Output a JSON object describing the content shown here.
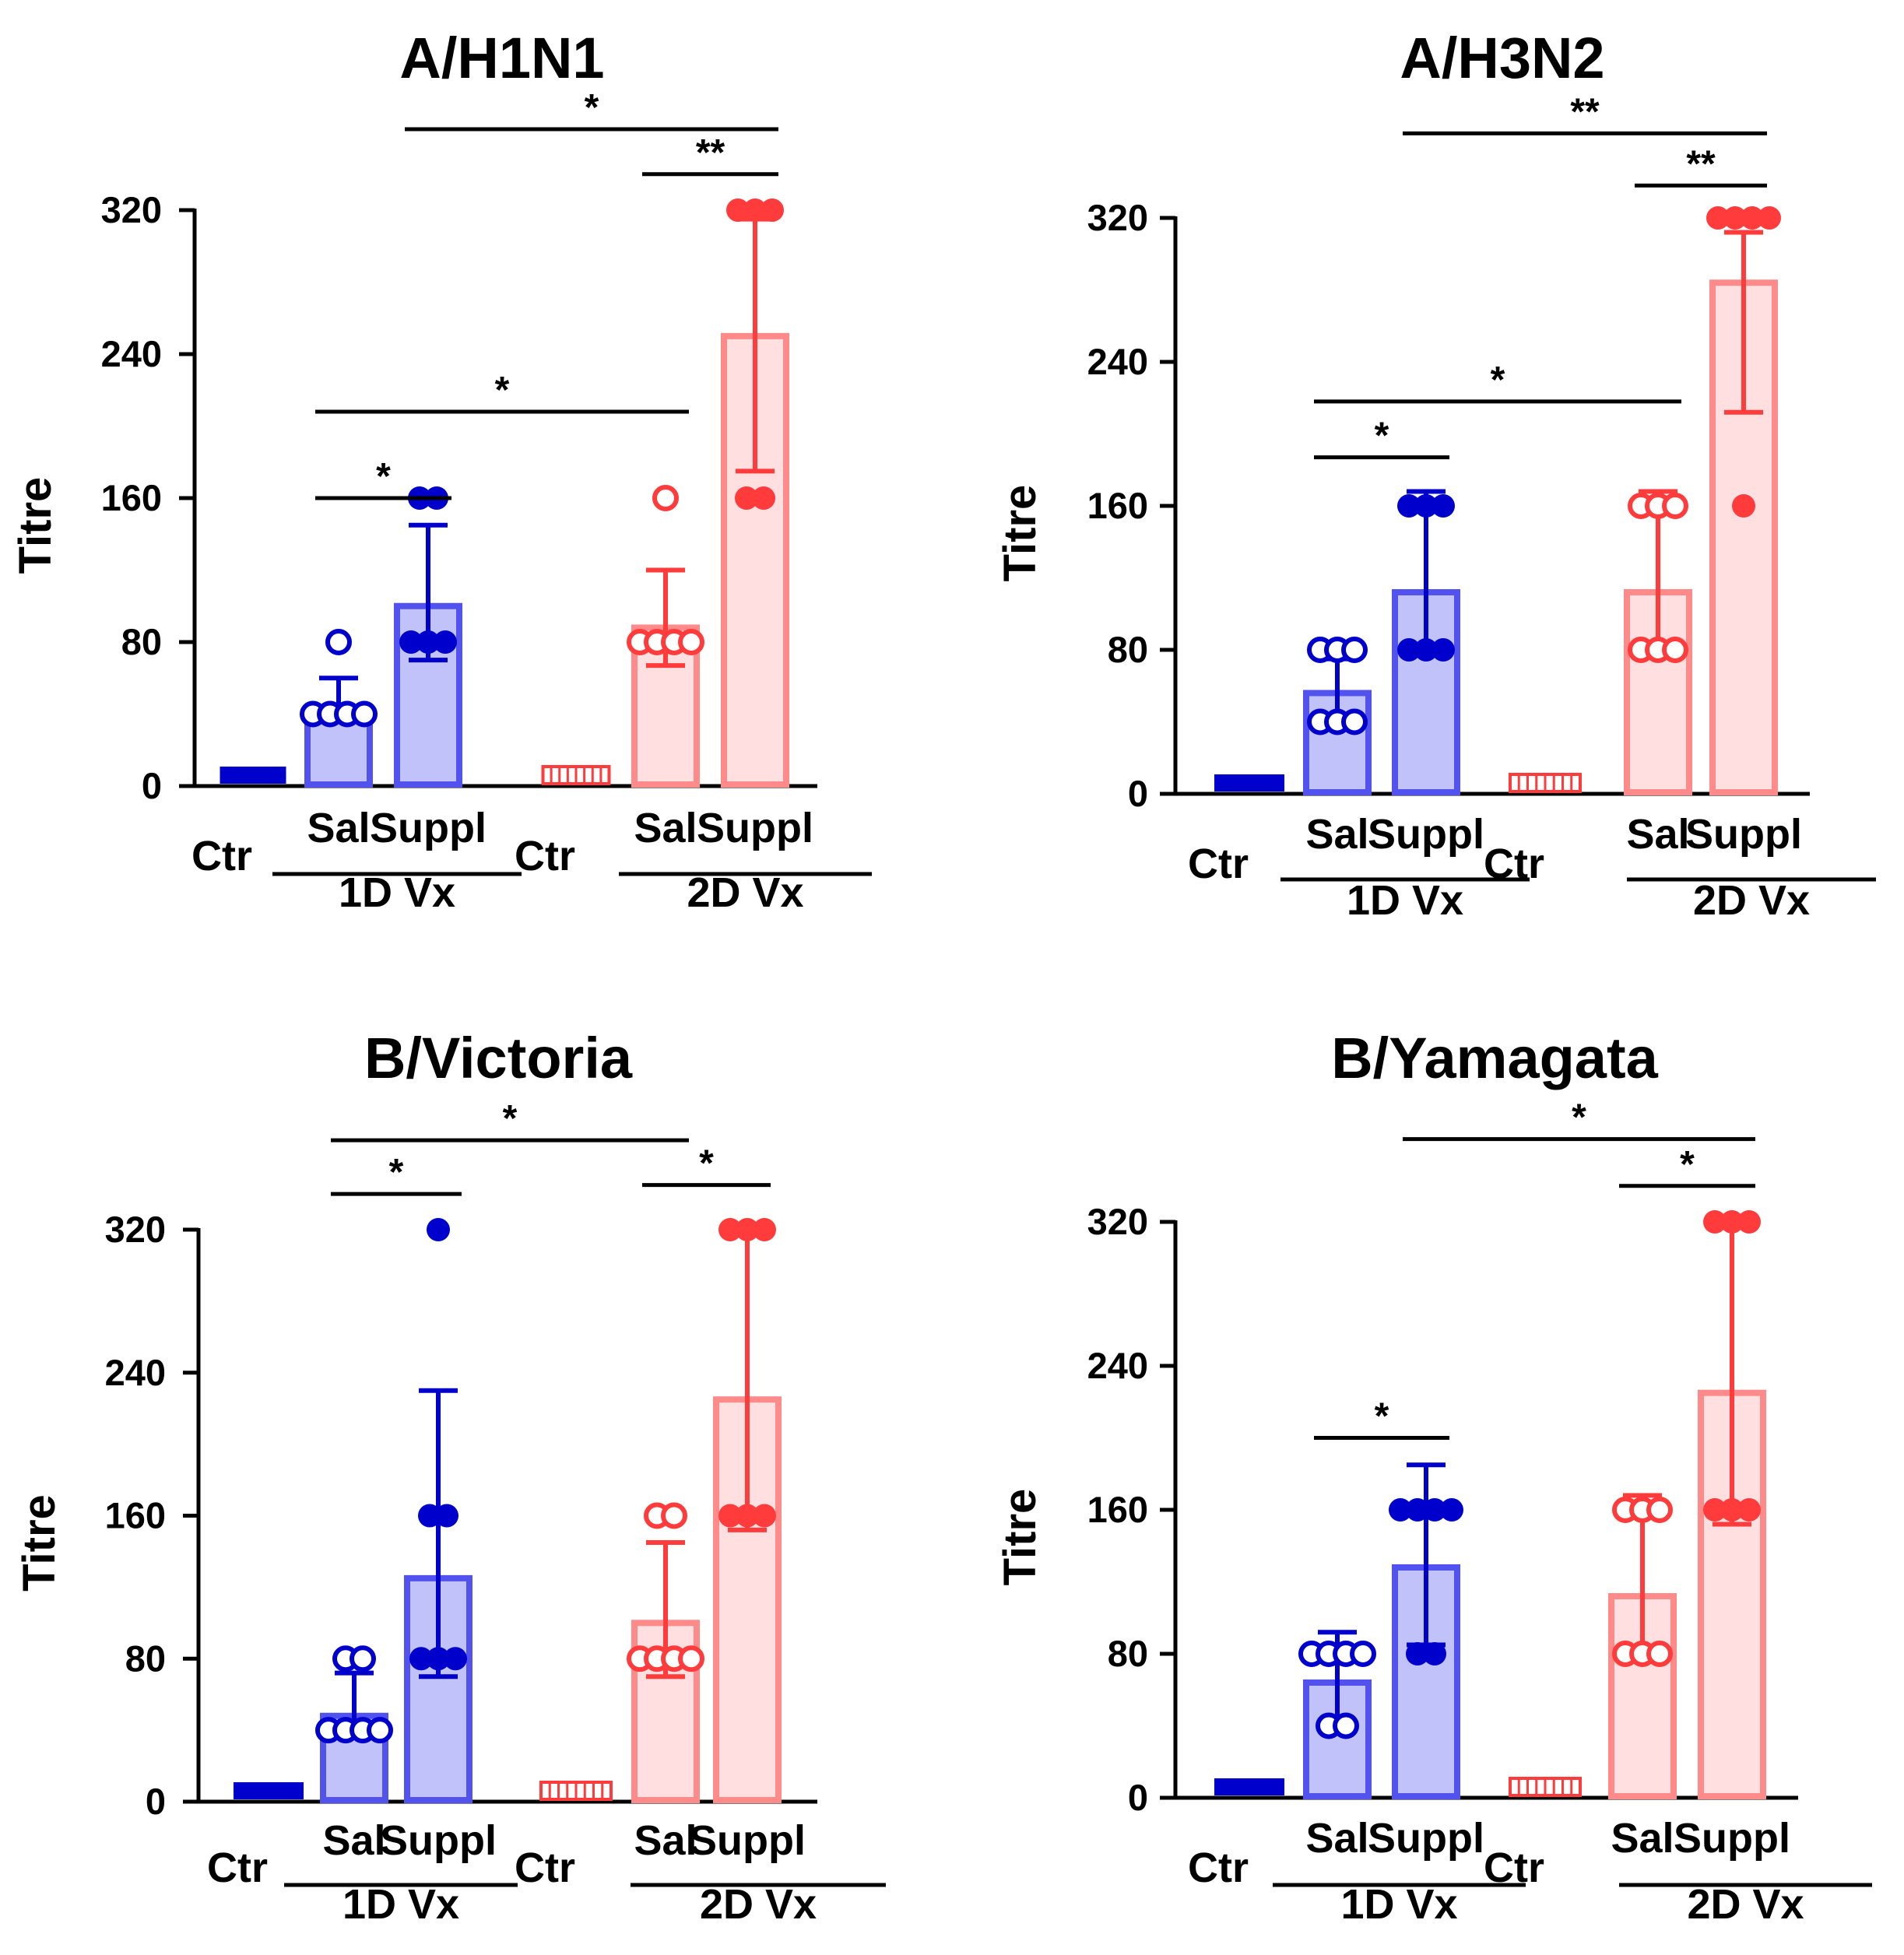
{
  "colors": {
    "blue_dark": "#0000cc",
    "blue_bar_fill": "#c2c2fb",
    "blue_bar_edge": "#5252ee",
    "red_dark": "#ff3b3b",
    "red_bar_fill": "#ffdfdf",
    "red_bar_edge": "#ff8a8a"
  },
  "chart_data": [
    {
      "type": "bar",
      "title": "A/H1N1",
      "ylabel": "Titre",
      "ylim": [
        0,
        320
      ],
      "yticks": [
        "0",
        "80",
        "160",
        "240",
        "320"
      ],
      "categories": [
        "Ctr",
        "Sal",
        "Suppl",
        "Ctr",
        "Sal",
        "Suppl"
      ],
      "groups": [
        {
          "label": "1D Vx",
          "start": 1,
          "end": 2
        },
        {
          "label": "2D Vx",
          "start": 4,
          "end": 5
        }
      ],
      "bars": [
        {
          "label": "Ctr",
          "mean": 10,
          "sd_low": 10,
          "sd_high": 10,
          "points": [
            10,
            10,
            10,
            10,
            10
          ],
          "color": "blue",
          "hollow": false,
          "ctr": true
        },
        {
          "label": "Sal",
          "mean": 40,
          "sd_low": 40,
          "sd_high": 60,
          "points": [
            40,
            40,
            40,
            40,
            80
          ],
          "color": "blue",
          "hollow": true
        },
        {
          "label": "Suppl",
          "mean": 100,
          "sd_low": 70,
          "sd_high": 145,
          "points": [
            80,
            80,
            80,
            160,
            160
          ],
          "color": "blue",
          "hollow": false
        },
        {
          "label": "Ctr",
          "mean": 10,
          "sd_low": 10,
          "sd_high": 10,
          "points": [
            10,
            10,
            10,
            10,
            10
          ],
          "color": "red",
          "hollow": true,
          "ctr": true
        },
        {
          "label": "Sal",
          "mean": 88,
          "sd_low": 67,
          "sd_high": 120,
          "points": [
            80,
            80,
            80,
            80,
            160
          ],
          "color": "red",
          "hollow": true
        },
        {
          "label": "Suppl",
          "mean": 250,
          "sd_low": 175,
          "sd_high": 315,
          "points": [
            160,
            160,
            320,
            320,
            320
          ],
          "color": "red",
          "hollow": false
        }
      ],
      "significance": [
        {
          "from": 1,
          "to": 2,
          "label": "*",
          "level": 160
        },
        {
          "from": 1,
          "to": 4,
          "label": "*",
          "level": 208
        },
        {
          "from": 4,
          "to": 5,
          "label": "**",
          "level": 340
        },
        {
          "from": 2,
          "to": 5,
          "label": "*",
          "level": 365
        }
      ]
    },
    {
      "type": "bar",
      "title": "A/H3N2",
      "ylabel": "Titre",
      "ylim": [
        0,
        320
      ],
      "yticks": [
        "0",
        "80",
        "160",
        "240",
        "320"
      ],
      "categories": [
        "Ctr",
        "Sal",
        "Suppl",
        "Ctr",
        "Sal",
        "Suppl"
      ],
      "groups": [
        {
          "label": "1D Vx",
          "start": 1,
          "end": 2
        },
        {
          "label": "2D Vx",
          "start": 4,
          "end": 5
        }
      ],
      "bars": [
        {
          "label": "Ctr",
          "mean": 10,
          "sd_low": 10,
          "sd_high": 10,
          "points": [
            10,
            10,
            10,
            10,
            10
          ],
          "color": "blue",
          "hollow": false,
          "ctr": true
        },
        {
          "label": "Sal",
          "mean": 56,
          "sd_low": 40,
          "sd_high": 75,
          "points": [
            40,
            40,
            40,
            80,
            80,
            80
          ],
          "color": "blue",
          "hollow": true
        },
        {
          "label": "Suppl",
          "mean": 112,
          "sd_low": 80,
          "sd_high": 168,
          "points": [
            80,
            80,
            80,
            160,
            160,
            160
          ],
          "color": "blue",
          "hollow": false
        },
        {
          "label": "Ctr",
          "mean": 10,
          "sd_low": 10,
          "sd_high": 10,
          "points": [
            10,
            10,
            10,
            10,
            10
          ],
          "color": "red",
          "hollow": true,
          "ctr": true
        },
        {
          "label": "Sal",
          "mean": 112,
          "sd_low": 80,
          "sd_high": 168,
          "points": [
            80,
            80,
            80,
            160,
            160,
            160
          ],
          "color": "red",
          "hollow": true
        },
        {
          "label": "Suppl",
          "mean": 284,
          "sd_low": 212,
          "sd_high": 312,
          "points": [
            160,
            320,
            320,
            320,
            320
          ],
          "color": "red",
          "hollow": false
        }
      ],
      "significance": [
        {
          "from": 1,
          "to": 2,
          "label": "*",
          "level": 187
        },
        {
          "from": 1,
          "to": 4,
          "label": "*",
          "level": 218
        },
        {
          "from": 4,
          "to": 5,
          "label": "**",
          "level": 338
        },
        {
          "from": 2,
          "to": 5,
          "label": "**",
          "level": 367
        }
      ]
    },
    {
      "type": "bar",
      "title": "B/Victoria",
      "ylabel": "Titre",
      "ylim": [
        0,
        320
      ],
      "yticks": [
        "0",
        "80",
        "160",
        "240",
        "320"
      ],
      "categories": [
        "Ctr",
        "Sal",
        "Suppl",
        "Ctr",
        "Sal",
        "Suppl"
      ],
      "groups": [
        {
          "label": "1D Vx",
          "start": 1,
          "end": 2
        },
        {
          "label": "2D Vx",
          "start": 4,
          "end": 5
        }
      ],
      "bars": [
        {
          "label": "Ctr",
          "mean": 10,
          "sd_low": 10,
          "sd_high": 10,
          "points": [
            10,
            10,
            10,
            10,
            10
          ],
          "color": "blue",
          "hollow": false,
          "ctr": true
        },
        {
          "label": "Sal",
          "mean": 48,
          "sd_low": 40,
          "sd_high": 72,
          "points": [
            40,
            40,
            40,
            40,
            80,
            80
          ],
          "color": "blue",
          "hollow": true
        },
        {
          "label": "Suppl",
          "mean": 125,
          "sd_low": 70,
          "sd_high": 230,
          "points": [
            80,
            80,
            80,
            160,
            160,
            320
          ],
          "color": "blue",
          "hollow": false
        },
        {
          "label": "Ctr",
          "mean": 10,
          "sd_low": 10,
          "sd_high": 10,
          "points": [
            10,
            10,
            10,
            10,
            10
          ],
          "color": "red",
          "hollow": true,
          "ctr": true
        },
        {
          "label": "Sal",
          "mean": 100,
          "sd_low": 70,
          "sd_high": 145,
          "points": [
            80,
            80,
            80,
            80,
            160,
            160
          ],
          "color": "red",
          "hollow": true
        },
        {
          "label": "Suppl",
          "mean": 225,
          "sd_low": 152,
          "sd_high": 318,
          "points": [
            160,
            160,
            160,
            320,
            320,
            320
          ],
          "color": "red",
          "hollow": false
        }
      ],
      "significance": [
        {
          "from": 1,
          "to": 2,
          "label": "*",
          "level": 340
        },
        {
          "from": 4,
          "to": 5,
          "label": "*",
          "level": 345
        },
        {
          "from": 1,
          "to": 4,
          "label": "*",
          "level": 370
        }
      ]
    },
    {
      "type": "bar",
      "title": "B/Yamagata",
      "ylabel": "Titre",
      "ylim": [
        0,
        320
      ],
      "yticks": [
        "0",
        "80",
        "160",
        "240",
        "320"
      ],
      "categories": [
        "Ctr",
        "Sal",
        "Suppl",
        "Ctr",
        "Sal",
        "Suppl"
      ],
      "groups": [
        {
          "label": "1D Vx",
          "start": 1,
          "end": 2
        },
        {
          "label": "2D Vx",
          "start": 4,
          "end": 5
        }
      ],
      "bars": [
        {
          "label": "Ctr",
          "mean": 10,
          "sd_low": 10,
          "sd_high": 10,
          "points": [
            10,
            10,
            10,
            10,
            10
          ],
          "color": "blue",
          "hollow": false,
          "ctr": true
        },
        {
          "label": "Sal",
          "mean": 64,
          "sd_low": 40,
          "sd_high": 92,
          "points": [
            40,
            40,
            80,
            80,
            80,
            80
          ],
          "color": "blue",
          "hollow": true
        },
        {
          "label": "Suppl",
          "mean": 128,
          "sd_low": 85,
          "sd_high": 185,
          "points": [
            80,
            80,
            160,
            160,
            160,
            160
          ],
          "color": "blue",
          "hollow": false
        },
        {
          "label": "Ctr",
          "mean": 10,
          "sd_low": 10,
          "sd_high": 10,
          "points": [
            10,
            10,
            10,
            10,
            10
          ],
          "color": "red",
          "hollow": true,
          "ctr": true
        },
        {
          "label": "Sal",
          "mean": 112,
          "sd_low": 80,
          "sd_high": 168,
          "points": [
            80,
            80,
            80,
            160,
            160,
            160
          ],
          "color": "red",
          "hollow": true
        },
        {
          "label": "Suppl",
          "mean": 225,
          "sd_low": 152,
          "sd_high": 318,
          "points": [
            160,
            160,
            160,
            320,
            320,
            320
          ],
          "color": "red",
          "hollow": false
        }
      ],
      "significance": [
        {
          "from": 1,
          "to": 2,
          "label": "*",
          "level": 200
        },
        {
          "from": 4,
          "to": 5,
          "label": "*",
          "level": 340
        },
        {
          "from": 2,
          "to": 5,
          "label": "*",
          "level": 366
        }
      ]
    }
  ]
}
